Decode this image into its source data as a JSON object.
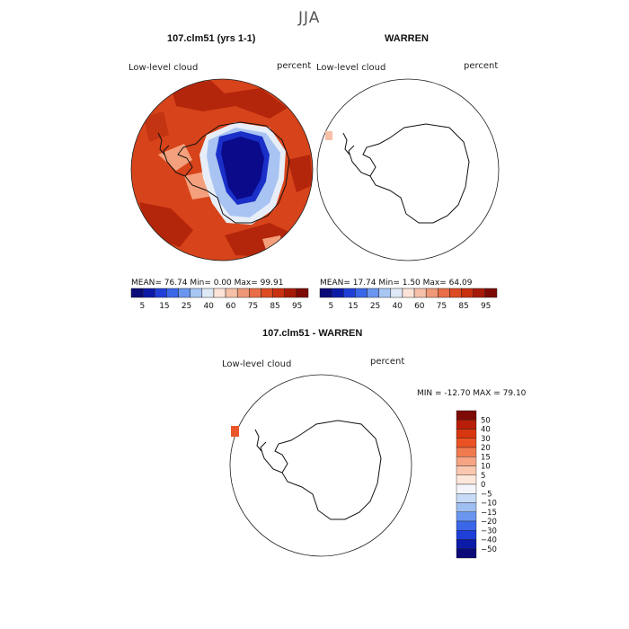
{
  "page_title": "JJA",
  "panel1": {
    "title": "107.clm51 (yrs 1-1)",
    "variable": "Low-level cloud",
    "units": "percent",
    "stats": "MEAN=  76.74   Min=    0.00   Max=  99.91"
  },
  "panel2": {
    "title": "WARREN",
    "variable": "Low-level cloud",
    "units": "percent",
    "stats": "MEAN=  17.74   Min=    1.50   Max=  64.09"
  },
  "panel3": {
    "title": "107.clm51 - WARREN",
    "variable": "Low-level cloud",
    "units": "percent",
    "stats": "MIN = -12.70 MAX =  79.10"
  },
  "colorbar_abs": {
    "colors": [
      "#0a0a78",
      "#0c1aa8",
      "#1f3fd8",
      "#3a66e8",
      "#6a96f0",
      "#a8c6f4",
      "#dfe9f6",
      "#fbe3d8",
      "#f6c0a8",
      "#ef9878",
      "#e86e48",
      "#dd4b22",
      "#c9300f",
      "#a81a08",
      "#7d0a04"
    ],
    "labels": [
      "5",
      "15",
      "25",
      "40",
      "60",
      "75",
      "85",
      "95"
    ]
  },
  "colorbar_diff": {
    "colors": [
      "#7d0a04",
      "#b81d08",
      "#d8360e",
      "#ea5224",
      "#f07a4e",
      "#f6a484",
      "#fac8b0",
      "#fde6da",
      "#f3f5fb",
      "#c8dbf6",
      "#9fbff2",
      "#6a96f0",
      "#3a66e8",
      "#1f3fd8",
      "#0c1aa8",
      "#0a0a78"
    ],
    "labels": [
      "50",
      "40",
      "30",
      "20",
      "15",
      "10",
      "5",
      "0",
      "−5",
      "−10",
      "−15",
      "−20",
      "−30",
      "−40",
      "−50"
    ]
  }
}
